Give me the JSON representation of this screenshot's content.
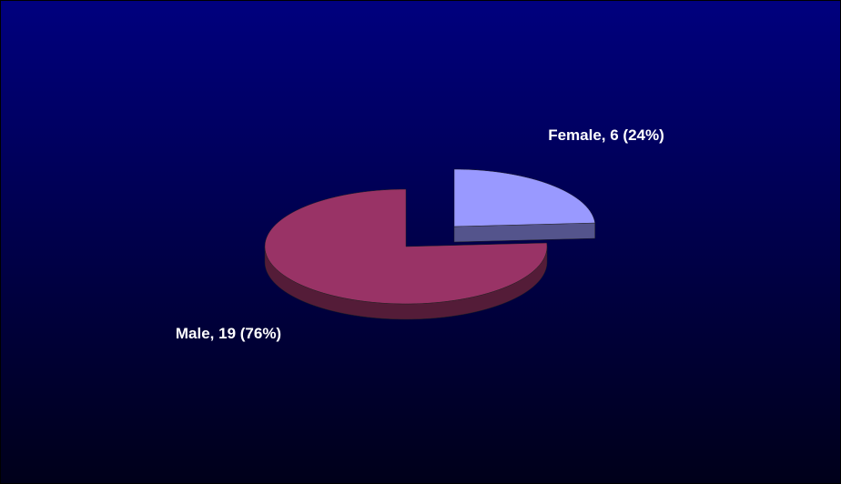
{
  "chart_data": {
    "type": "pie",
    "values": [
      6,
      19
    ],
    "value_labels": [
      "Female, 6 (24%)",
      "Male, 19 (76%)"
    ],
    "colors": [
      "#9999ff",
      "#993366"
    ]
  }
}
